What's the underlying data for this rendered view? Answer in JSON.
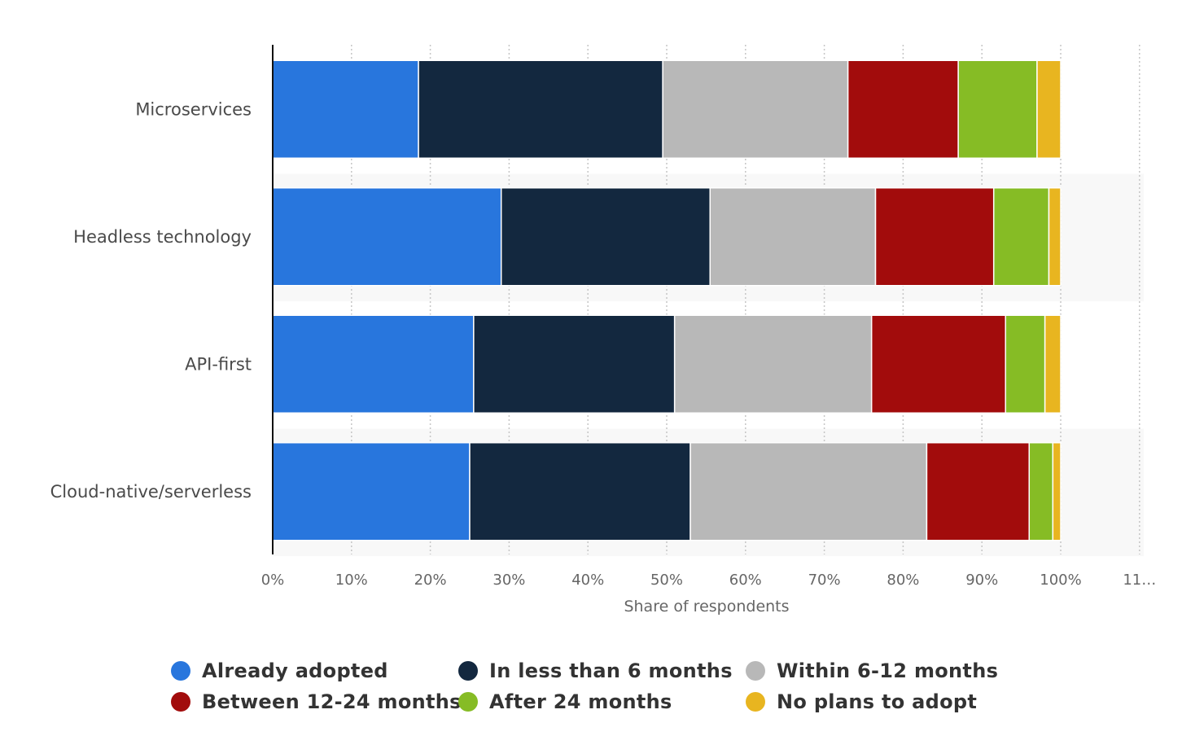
{
  "chart_data": {
    "type": "bar",
    "orientation": "horizontal",
    "stacked": true,
    "categories": [
      "Microservices",
      "Headless technology",
      "API-first",
      "Cloud-native/serverless"
    ],
    "series": [
      {
        "name": "Already adopted",
        "color": "#2876dd",
        "values": [
          18.5,
          29,
          25.5,
          25
        ]
      },
      {
        "name": "In less than 6 months",
        "color": "#13283f",
        "values": [
          31,
          26.5,
          25.5,
          28
        ]
      },
      {
        "name": "Within 6-12 months",
        "color": "#b8b8b8",
        "values": [
          23.5,
          21,
          25,
          30
        ]
      },
      {
        "name": "Between 12-24 months",
        "color": "#a20c0c",
        "values": [
          14,
          15,
          17,
          13
        ]
      },
      {
        "name": "After 24 months",
        "color": "#86bc25",
        "values": [
          10,
          7,
          5,
          3
        ]
      },
      {
        "name": "No plans to adopt",
        "color": "#e8b520",
        "values": [
          3,
          1.5,
          2,
          1
        ]
      }
    ],
    "xlabel": "Share of respondents",
    "xticks": [
      "0%",
      "10%",
      "20%",
      "30%",
      "40%",
      "50%",
      "60%",
      "70%",
      "80%",
      "90%",
      "100%",
      "11…"
    ],
    "xlim": [
      0,
      110
    ],
    "grid": "vertical dotted",
    "legend_position": "bottom"
  }
}
